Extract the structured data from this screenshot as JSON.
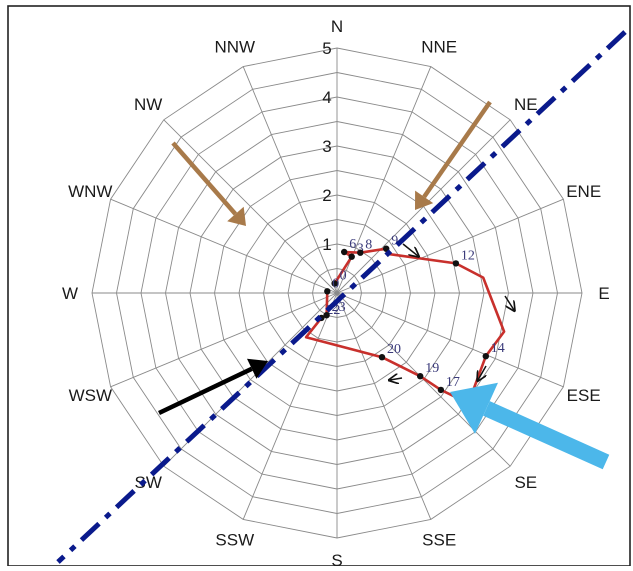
{
  "chart_data": {
    "type": "polar-line",
    "title": "",
    "directions": [
      "N",
      "NNE",
      "NE",
      "ENE",
      "E",
      "ESE",
      "SE",
      "SSE",
      "S",
      "SSW",
      "SW",
      "WSW",
      "W",
      "WNW",
      "NW",
      "NNW"
    ],
    "radial_ticks": [
      "1",
      "2",
      "3",
      "4",
      "5"
    ],
    "rlim": [
      0,
      5
    ],
    "series": [
      {
        "color": "#c8302c",
        "points": [
          {
            "label": "0",
            "angle_deg": 346,
            "r": 0.2
          },
          {
            "label": "3",
            "angle_deg": 22,
            "r": 0.8
          },
          {
            "label": "6",
            "angle_deg": 10,
            "r": 0.85
          },
          {
            "label": "8",
            "angle_deg": 30,
            "r": 0.95
          },
          {
            "label": "9",
            "angle_deg": 48,
            "r": 1.35
          },
          {
            "label": "",
            "angle_deg": 52,
            "r": 1.3
          },
          {
            "label": "12",
            "angle_deg": 76,
            "r": 2.5
          },
          {
            "label": "",
            "angle_deg": 84,
            "r": 3.0
          },
          {
            "label": "",
            "angle_deg": 103,
            "r": 3.5
          },
          {
            "label": "14",
            "angle_deg": 113,
            "r": 3.3
          },
          {
            "label": "",
            "angle_deg": 130,
            "r": 3.5
          },
          {
            "label": "17",
            "angle_deg": 133,
            "r": 2.9
          },
          {
            "label": "19",
            "angle_deg": 135,
            "r": 2.4
          },
          {
            "label": "20",
            "angle_deg": 145,
            "r": 1.6
          },
          {
            "label": "",
            "angle_deg": 215,
            "r": 1.1
          },
          {
            "label": "22",
            "angle_deg": 212,
            "r": 0.6
          },
          {
            "label": "23",
            "angle_deg": 205,
            "r": 0.5
          },
          {
            "label": "0",
            "angle_deg": 280,
            "r": 0.2
          }
        ]
      }
    ],
    "annotations": {
      "dashdot_line_color": "#0a1a8c",
      "brown_arrow_color": "#a87a4a",
      "black_arrow_color": "#000000",
      "blue_arrow_color": "#4cb7ea"
    },
    "grid": true
  }
}
